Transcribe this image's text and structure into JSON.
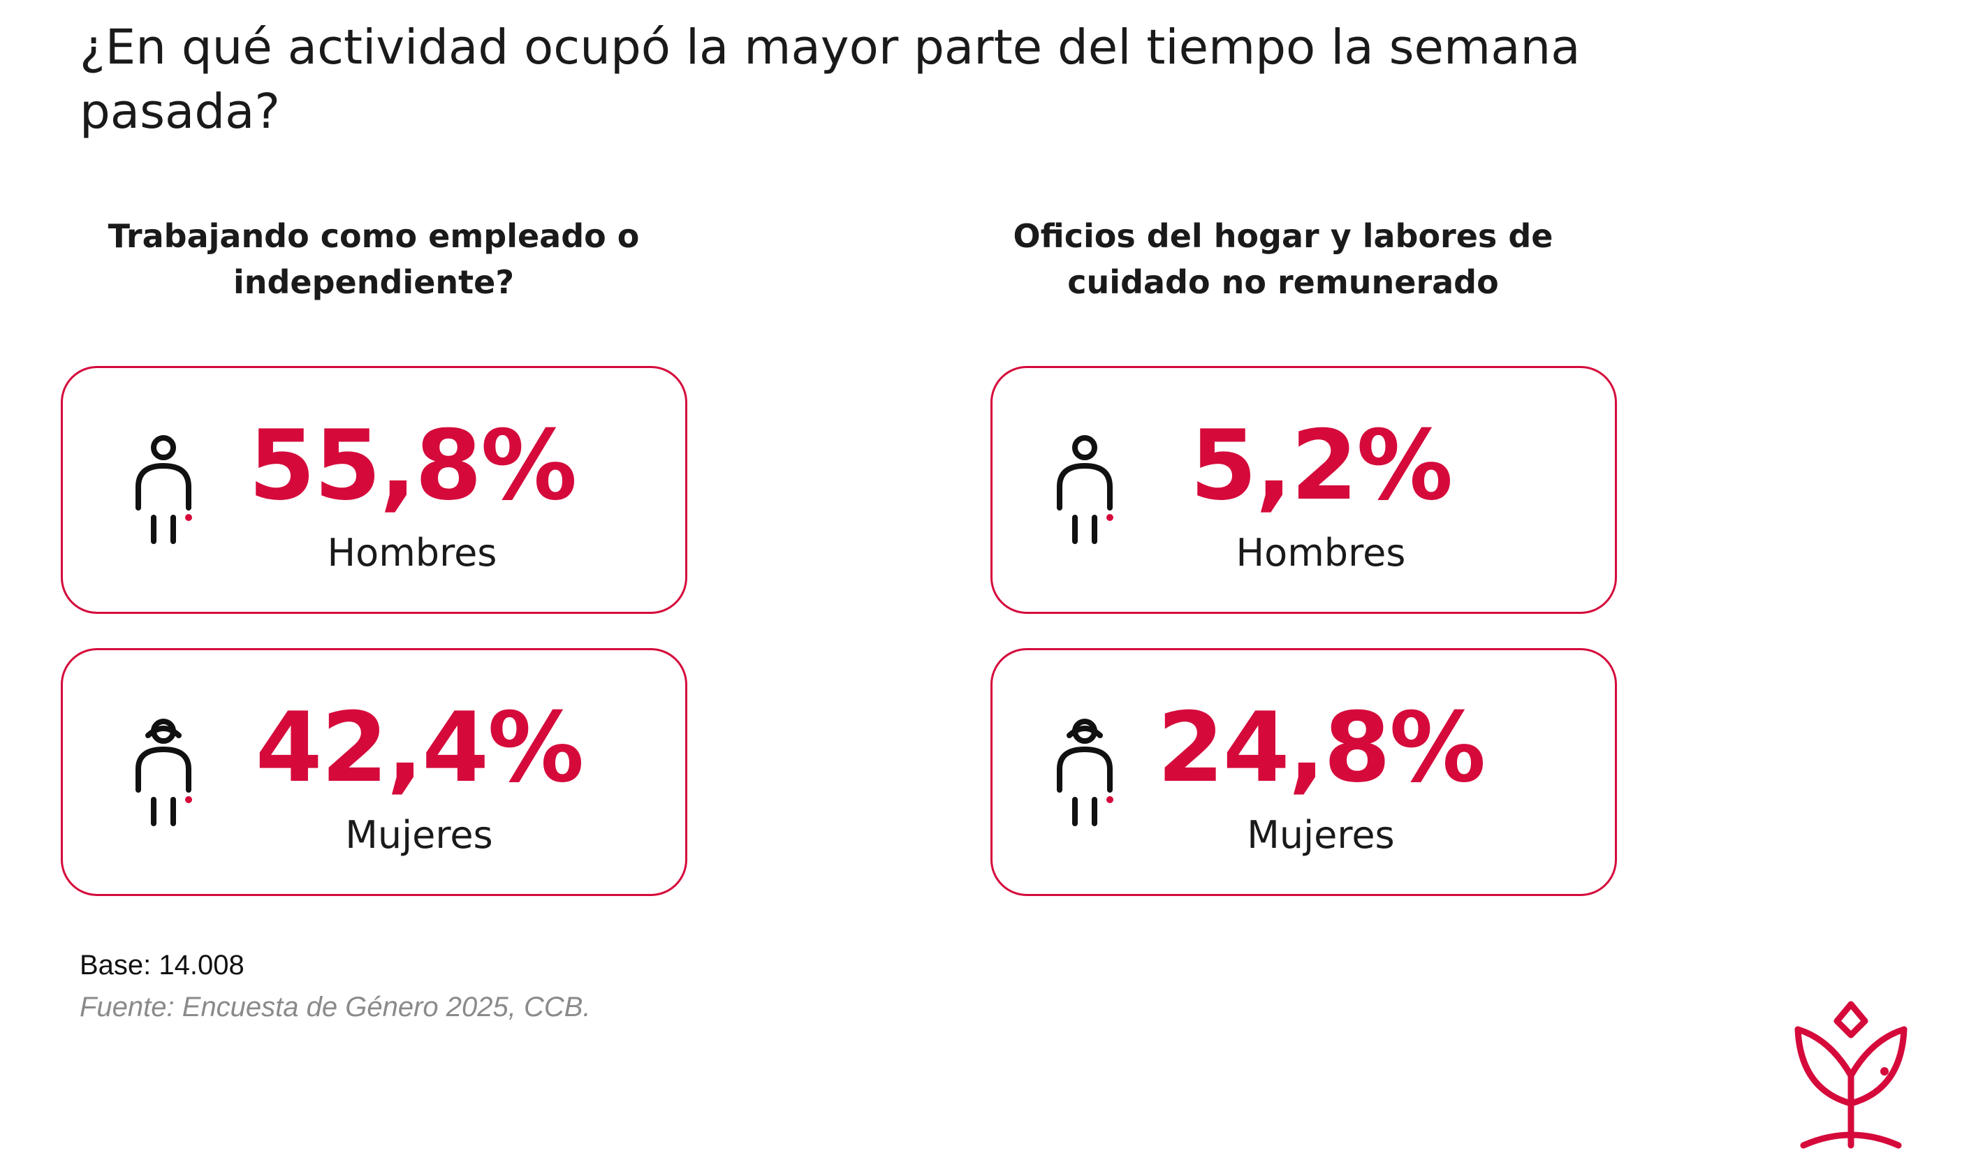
{
  "title": "¿En qué actividad ocupó la mayor parte del tiempo la semana\npasada?",
  "sections": [
    {
      "heading": "Trabajando como empleado o\nindependiente?",
      "cards": [
        {
          "value": "55,8%",
          "label": "Hombres",
          "icon": "man-icon"
        },
        {
          "value": "42,4%",
          "label": "Mujeres",
          "icon": "woman-icon"
        }
      ]
    },
    {
      "heading": "Oficios del hogar y labores de\ncuidado no remunerado",
      "cards": [
        {
          "value": "5,2%",
          "label": "Hombres",
          "icon": "man-icon"
        },
        {
          "value": "24,8%",
          "label": "Mujeres",
          "icon": "woman-icon"
        }
      ]
    }
  ],
  "footer": {
    "base": "Base: 14.008",
    "source": "Fuente: Encuesta de Género 2025, CCB."
  },
  "logo": {
    "icon": "flower-logo-icon"
  },
  "colors": {
    "accent": "#d50a3b",
    "text": "#1a1a1a",
    "muted": "#8a8a8a"
  }
}
